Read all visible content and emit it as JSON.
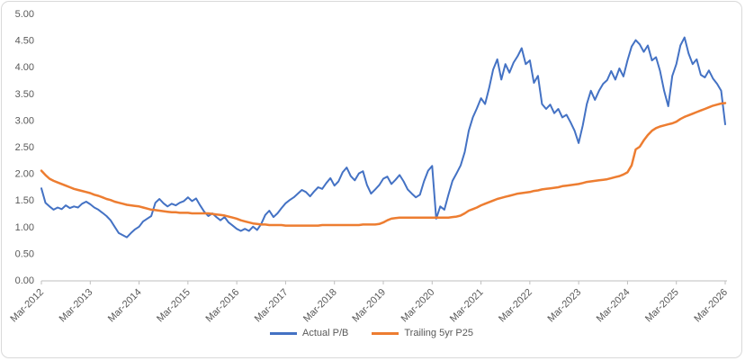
{
  "colors": {
    "series_blue": "#4472C4",
    "series_orange": "#ED7D31",
    "axis_line": "#BFBFBF",
    "axis_label": "#595959",
    "frame_border": "#D9D9D9"
  },
  "chart_data": {
    "type": "line",
    "title": "",
    "x_start": "Mar-2012",
    "x_end": "Mar-2026",
    "x_frequency": "monthly",
    "x_axis": {
      "tick_labels": [
        "Mar-2012",
        "Mar-2013",
        "Mar-2014",
        "Mar-2015",
        "Mar-2016",
        "Mar-2017",
        "Mar-2018",
        "Mar-2019",
        "Mar-2020",
        "Mar-2021",
        "Mar-2022",
        "Mar-2023",
        "Mar-2024",
        "Mar-2025",
        "Mar-2026"
      ],
      "label_rotation_deg": -45,
      "months_per_tick": 12
    },
    "y_axis": {
      "min": 0,
      "max": 5,
      "step": 0.5,
      "tick_labels": [
        "0.00",
        "0.50",
        "1.00",
        "1.50",
        "2.00",
        "2.50",
        "3.00",
        "3.50",
        "4.00",
        "4.50",
        "5.00"
      ]
    },
    "grid": false,
    "legend_position": "bottom",
    "series": [
      {
        "name": "Actual P/B",
        "color": "#4472C4",
        "stroke_width": 2,
        "values": [
          1.72,
          1.45,
          1.38,
          1.32,
          1.36,
          1.33,
          1.4,
          1.35,
          1.38,
          1.36,
          1.43,
          1.47,
          1.42,
          1.36,
          1.32,
          1.26,
          1.2,
          1.12,
          1.0,
          0.88,
          0.84,
          0.8,
          0.88,
          0.95,
          1.0,
          1.1,
          1.15,
          1.2,
          1.45,
          1.52,
          1.44,
          1.38,
          1.43,
          1.4,
          1.45,
          1.48,
          1.55,
          1.48,
          1.53,
          1.4,
          1.28,
          1.2,
          1.25,
          1.18,
          1.12,
          1.18,
          1.08,
          1.02,
          0.96,
          0.92,
          0.96,
          0.92,
          1.0,
          0.94,
          1.05,
          1.22,
          1.3,
          1.18,
          1.25,
          1.35,
          1.44,
          1.5,
          1.55,
          1.62,
          1.69,
          1.65,
          1.57,
          1.66,
          1.74,
          1.71,
          1.82,
          1.91,
          1.77,
          1.85,
          2.02,
          2.11,
          1.95,
          1.87,
          2.0,
          2.04,
          1.78,
          1.62,
          1.7,
          1.78,
          1.9,
          1.94,
          1.8,
          1.88,
          1.97,
          1.85,
          1.7,
          1.62,
          1.55,
          1.6,
          1.85,
          2.05,
          2.14,
          1.15,
          1.38,
          1.32,
          1.6,
          1.86,
          2.0,
          2.15,
          2.4,
          2.8,
          3.05,
          3.22,
          3.41,
          3.3,
          3.6,
          3.95,
          4.14,
          3.76,
          4.05,
          3.89,
          4.08,
          4.2,
          4.35,
          4.05,
          4.12,
          3.7,
          3.83,
          3.3,
          3.21,
          3.29,
          3.13,
          3.21,
          3.05,
          3.1,
          2.96,
          2.8,
          2.57,
          2.9,
          3.3,
          3.55,
          3.38,
          3.55,
          3.68,
          3.75,
          3.92,
          3.76,
          3.97,
          3.82,
          4.12,
          4.38,
          4.5,
          4.42,
          4.28,
          4.4,
          4.12,
          4.18,
          3.92,
          3.55,
          3.26,
          3.83,
          4.05,
          4.4,
          4.55,
          4.25,
          4.05,
          4.14,
          3.85,
          3.8,
          3.93,
          3.78,
          3.68,
          3.55,
          2.92
        ]
      },
      {
        "name": "Trailing 5yr P25",
        "color": "#ED7D31",
        "stroke_width": 2.5,
        "values": [
          2.05,
          1.97,
          1.9,
          1.86,
          1.83,
          1.8,
          1.77,
          1.74,
          1.71,
          1.69,
          1.67,
          1.65,
          1.63,
          1.6,
          1.58,
          1.55,
          1.52,
          1.5,
          1.47,
          1.45,
          1.43,
          1.41,
          1.4,
          1.39,
          1.38,
          1.36,
          1.34,
          1.32,
          1.31,
          1.3,
          1.29,
          1.28,
          1.27,
          1.27,
          1.26,
          1.26,
          1.26,
          1.25,
          1.25,
          1.25,
          1.25,
          1.25,
          1.24,
          1.23,
          1.22,
          1.21,
          1.19,
          1.17,
          1.15,
          1.12,
          1.1,
          1.08,
          1.06,
          1.05,
          1.04,
          1.04,
          1.03,
          1.03,
          1.03,
          1.03,
          1.02,
          1.02,
          1.02,
          1.02,
          1.02,
          1.02,
          1.02,
          1.02,
          1.02,
          1.03,
          1.03,
          1.03,
          1.03,
          1.03,
          1.03,
          1.03,
          1.03,
          1.03,
          1.03,
          1.04,
          1.04,
          1.04,
          1.04,
          1.05,
          1.08,
          1.12,
          1.15,
          1.16,
          1.17,
          1.17,
          1.17,
          1.17,
          1.17,
          1.17,
          1.17,
          1.17,
          1.17,
          1.17,
          1.17,
          1.17,
          1.17,
          1.18,
          1.19,
          1.21,
          1.25,
          1.3,
          1.33,
          1.36,
          1.4,
          1.43,
          1.46,
          1.49,
          1.52,
          1.54,
          1.56,
          1.58,
          1.6,
          1.62,
          1.63,
          1.64,
          1.65,
          1.67,
          1.68,
          1.7,
          1.71,
          1.72,
          1.73,
          1.74,
          1.76,
          1.77,
          1.78,
          1.79,
          1.8,
          1.82,
          1.84,
          1.85,
          1.86,
          1.87,
          1.88,
          1.89,
          1.91,
          1.93,
          1.95,
          1.98,
          2.02,
          2.15,
          2.45,
          2.5,
          2.62,
          2.72,
          2.8,
          2.85,
          2.88,
          2.9,
          2.92,
          2.94,
          2.97,
          3.02,
          3.06,
          3.09,
          3.12,
          3.15,
          3.18,
          3.21,
          3.24,
          3.27,
          3.29,
          3.31,
          3.32
        ]
      }
    ]
  },
  "legend": {
    "entries": [
      {
        "label": "Actual P/B",
        "color": "#4472C4"
      },
      {
        "label": "Trailing 5yr P25",
        "color": "#ED7D31"
      }
    ]
  }
}
